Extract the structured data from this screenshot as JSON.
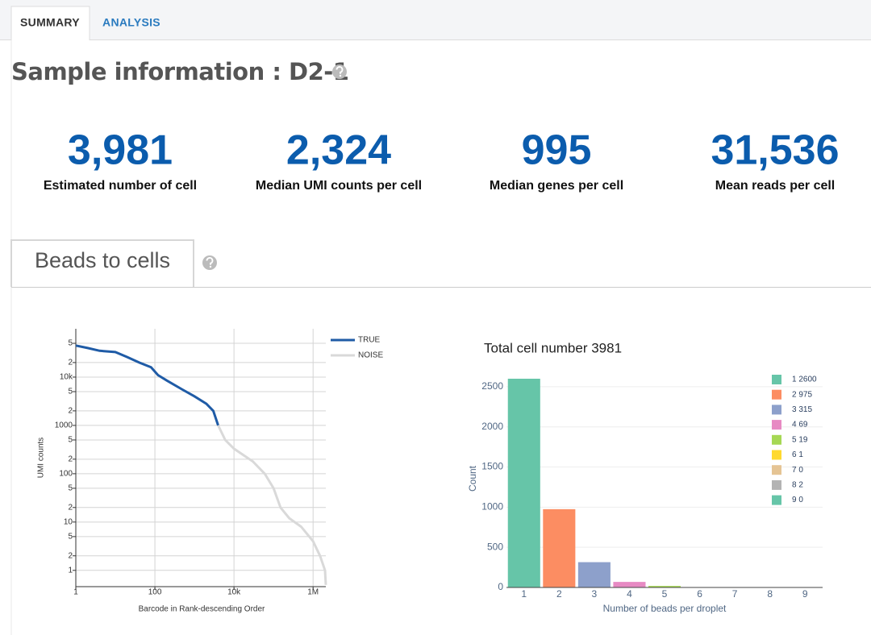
{
  "tabs": [
    "SUMMARY",
    "ANALYSIS"
  ],
  "title": "Sample information : D2-1",
  "metrics": [
    {
      "value": "3,981",
      "label": "Estimated number of cell"
    },
    {
      "value": "2,324",
      "label": "Median UMI counts per cell"
    },
    {
      "value": "995",
      "label": "Median genes per cell"
    },
    {
      "value": "31,536",
      "label": "Mean reads per cell"
    }
  ],
  "section": "Beads to cells",
  "chart_data": [
    {
      "type": "line",
      "xlabel": "Barcode in Rank-descending Order",
      "ylabel": "UMI counts",
      "xlog": true,
      "ylog": true,
      "grid": true,
      "legend": "top-right",
      "xlim": [
        1,
        2100000
      ],
      "ylim": [
        0.46,
        100000
      ],
      "xticks": [
        1,
        100,
        {
          "value": 10000,
          "label": "10k"
        },
        {
          "value": 1000000,
          "label": "1M"
        }
      ],
      "yticks": [
        1,
        2,
        5,
        10,
        {
          "value": 20,
          "label": "2"
        },
        {
          "value": 50,
          "label": "5"
        },
        100,
        {
          "value": 200,
          "label": "2"
        },
        {
          "value": 500,
          "label": "5"
        },
        1000,
        {
          "value": 2000,
          "label": "2"
        },
        {
          "value": 5000,
          "label": "5"
        },
        {
          "value": 10000,
          "label": "10k"
        },
        {
          "value": 20000,
          "label": "2"
        },
        {
          "value": 50000,
          "label": "5"
        }
      ],
      "series": [
        {
          "name": "TRUE",
          "color": "#1f5ba6",
          "x": [
            1,
            2,
            4,
            10,
            20,
            40,
            80,
            120,
            200,
            500,
            1000,
            2000,
            3000,
            3981
          ],
          "values": [
            45000,
            40000,
            35000,
            33000,
            26000,
            20000,
            16000,
            11000,
            8500,
            5500,
            4000,
            2800,
            2000,
            1000
          ]
        },
        {
          "name": "NOISE",
          "color": "#d9d9d9",
          "x": [
            3981,
            6000,
            10000,
            30000,
            60000,
            100000,
            150000,
            250000,
            500000,
            1000000,
            1500000,
            2000000,
            2100000
          ],
          "values": [
            1000,
            500,
            330,
            180,
            100,
            50,
            20,
            12,
            8,
            4,
            2,
            1,
            0.5
          ]
        }
      ]
    },
    {
      "type": "bar",
      "title": "Total cell number 3981",
      "xlabel": "Number of beads per droplet",
      "ylabel": "Count",
      "grid": true,
      "legend": "top-right",
      "categories": [
        "1",
        "2",
        "3",
        "4",
        "5",
        "6",
        "7",
        "8",
        "9"
      ],
      "values": [
        2600,
        975,
        315,
        69,
        19,
        1,
        0,
        2,
        0
      ],
      "colors": [
        "#66c5a8",
        "#fc8d62",
        "#8da0cb",
        "#e78ac3",
        "#a6d854",
        "#ffd92f",
        "#e5c494",
        "#b3b3b3",
        "#66c5a8"
      ],
      "legend_labels": [
        "1 2600",
        "2 975",
        "3 315",
        "4 69",
        "5 19",
        "6 1",
        "7  0",
        "8 2",
        "9  0"
      ],
      "ylim": [
        0,
        2700
      ],
      "yticks": [
        0,
        500,
        1000,
        1500,
        2000,
        2500
      ]
    }
  ]
}
